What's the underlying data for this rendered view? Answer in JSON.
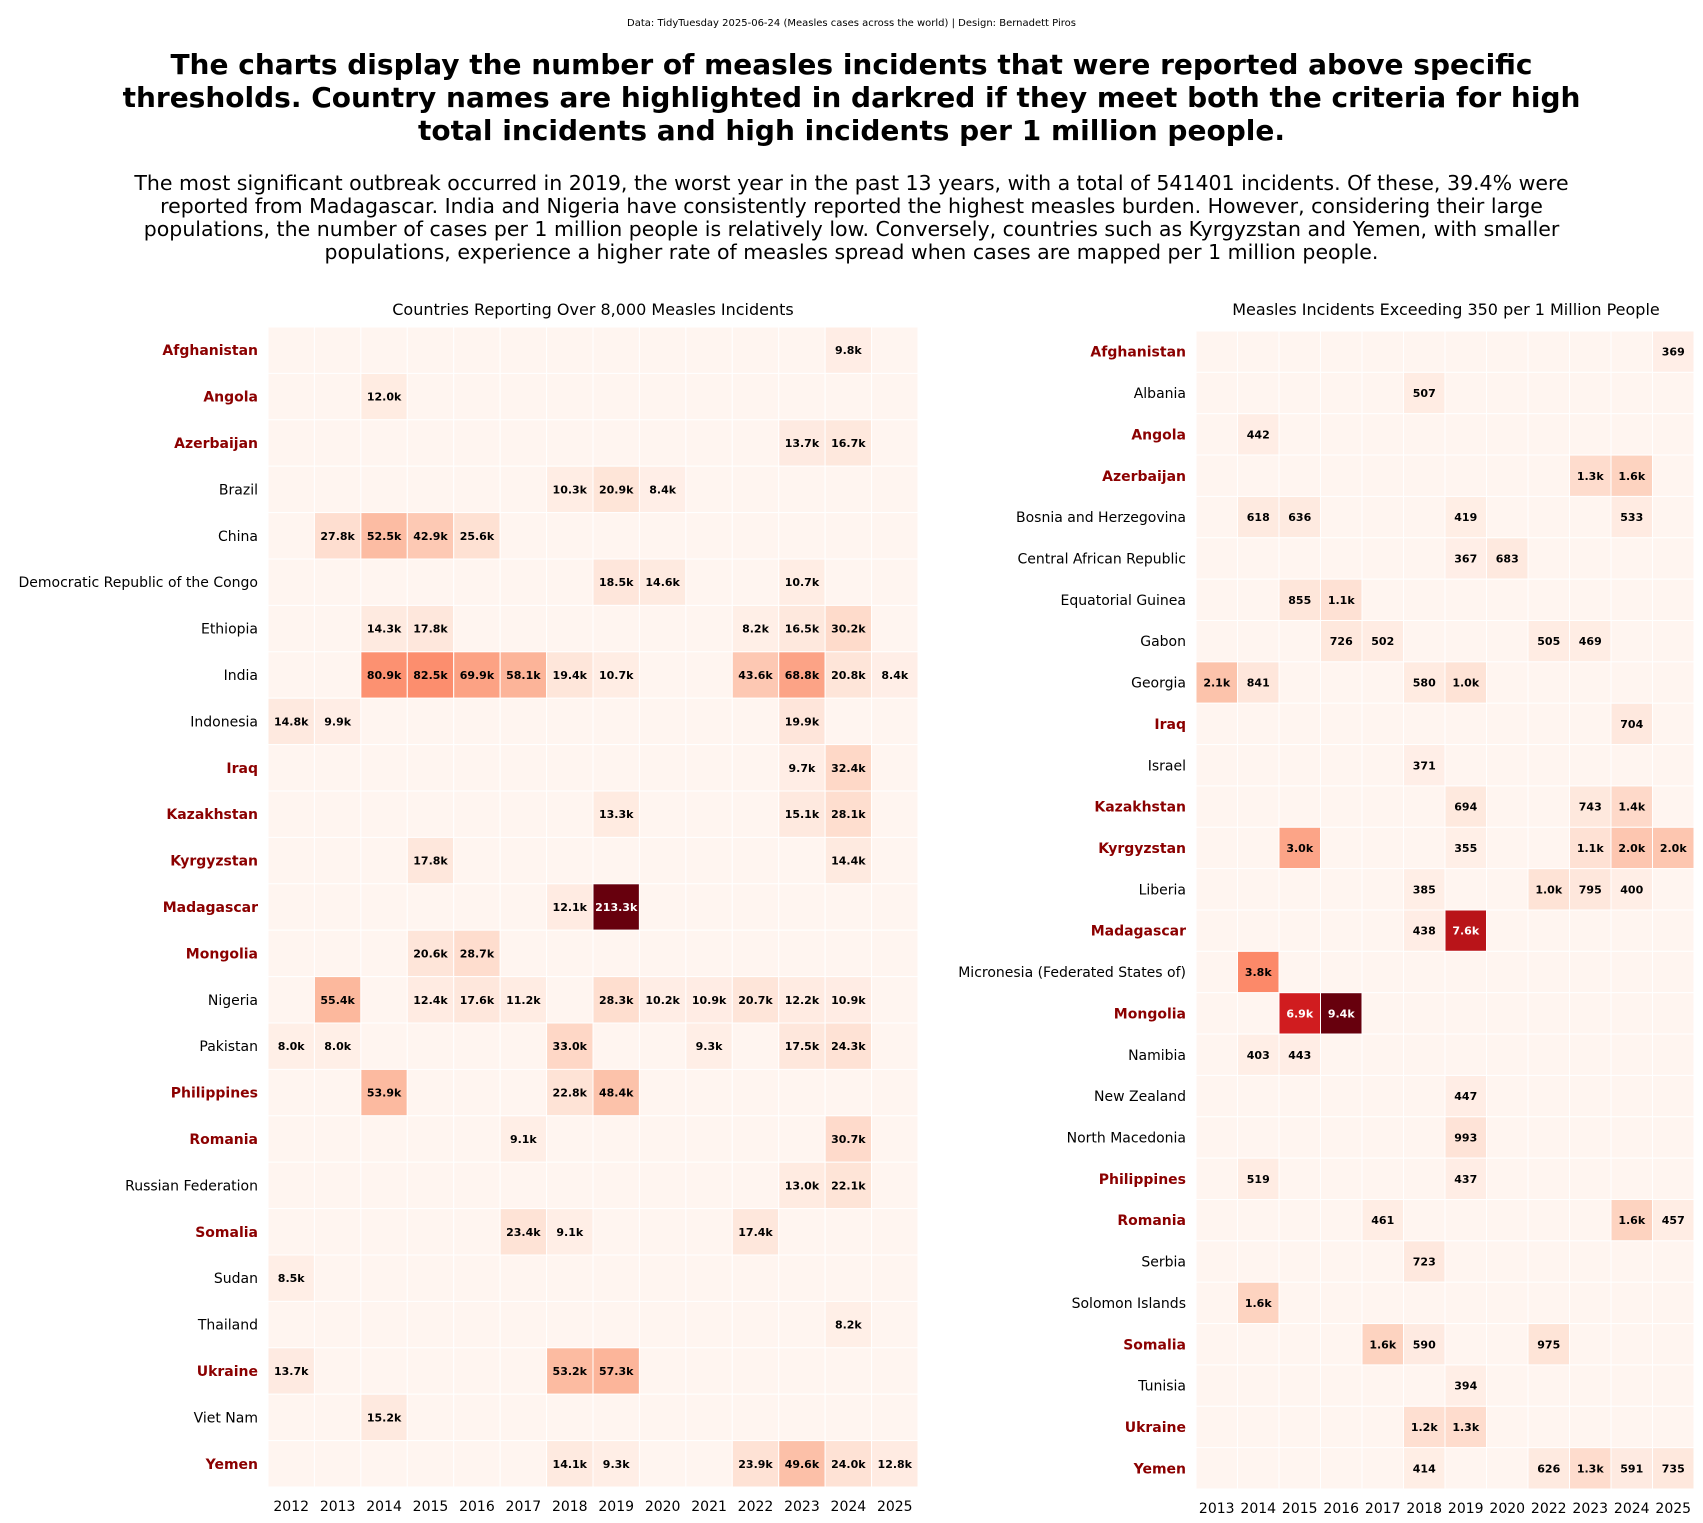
{
  "header": {
    "source": "Data: TidyTuesday 2025-06-24 (Measles cases across the world) | Design: Bernadett Piros",
    "title": "The charts display the number of measles incidents that were reported above specific thresholds. Country names are highlighted in darkred if they meet both the criteria for high total incidents and high incidents per 1 million people.",
    "subtitle": "The most significant outbreak occurred in 2019, the worst year in the past 13 years, with a total of 541401 incidents. Of these, 39.4% were reported from Madagascar. India and Nigeria have consistently reported the highest measles burden. However, considering their large populations, the number of cases per 1 million people is relatively low. Conversely, countries such as Kyrgyzstan and Yemen, with smaller populations, experience a higher rate of measles spread when cases are mapped per 1 million people."
  },
  "colors": {
    "highlight_label": "#8b0000",
    "normal_label": "#000000",
    "colormap": "Reds",
    "cell_background": "#fff5f0"
  },
  "chart_data": [
    {
      "type": "heatmap",
      "title": "Countries Reporting Over 8,000 Measles Incidents",
      "threshold": 8000,
      "columns": [
        "2012",
        "2013",
        "2014",
        "2015",
        "2016",
        "2017",
        "2018",
        "2019",
        "2020",
        "2021",
        "2022",
        "2023",
        "2024",
        "2025"
      ],
      "rows": [
        {
          "country": "Afghanistan",
          "highlight": true,
          "cells": {
            "2024": "9.8k"
          }
        },
        {
          "country": "Angola",
          "highlight": true,
          "cells": {
            "2014": "12.0k"
          }
        },
        {
          "country": "Azerbaijan",
          "highlight": true,
          "cells": {
            "2023": "13.7k",
            "2024": "16.7k"
          }
        },
        {
          "country": "Brazil",
          "highlight": false,
          "cells": {
            "2018": "10.3k",
            "2019": "20.9k",
            "2020": "8.4k"
          }
        },
        {
          "country": "China",
          "highlight": false,
          "cells": {
            "2013": "27.8k",
            "2014": "52.5k",
            "2015": "42.9k",
            "2016": "25.6k"
          }
        },
        {
          "country": "Democratic Republic of the Congo",
          "highlight": false,
          "cells": {
            "2019": "18.5k",
            "2020": "14.6k",
            "2023": "10.7k"
          }
        },
        {
          "country": "Ethiopia",
          "highlight": false,
          "cells": {
            "2014": "14.3k",
            "2015": "17.8k",
            "2022": "8.2k",
            "2023": "16.5k",
            "2024": "30.2k"
          }
        },
        {
          "country": "India",
          "highlight": false,
          "cells": {
            "2014": "80.9k",
            "2015": "82.5k",
            "2016": "69.9k",
            "2017": "58.1k",
            "2018": "19.4k",
            "2019": "10.7k",
            "2022": "43.6k",
            "2023": "68.8k",
            "2024": "20.8k",
            "2025": "8.4k"
          }
        },
        {
          "country": "Indonesia",
          "highlight": false,
          "cells": {
            "2012": "14.8k",
            "2013": "9.9k",
            "2023": "19.9k"
          }
        },
        {
          "country": "Iraq",
          "highlight": true,
          "cells": {
            "2023": "9.7k",
            "2024": "32.4k"
          }
        },
        {
          "country": "Kazakhstan",
          "highlight": true,
          "cells": {
            "2019": "13.3k",
            "2023": "15.1k",
            "2024": "28.1k"
          }
        },
        {
          "country": "Kyrgyzstan",
          "highlight": true,
          "cells": {
            "2015": "17.8k",
            "2024": "14.4k"
          }
        },
        {
          "country": "Madagascar",
          "highlight": true,
          "cells": {
            "2018": "12.1k",
            "2019": "213.3k"
          }
        },
        {
          "country": "Mongolia",
          "highlight": true,
          "cells": {
            "2015": "20.6k",
            "2016": "28.7k"
          }
        },
        {
          "country": "Nigeria",
          "highlight": false,
          "cells": {
            "2013": "55.4k",
            "2015": "12.4k",
            "2016": "17.6k",
            "2017": "11.2k",
            "2019": "28.3k",
            "2020": "10.2k",
            "2021": "10.9k",
            "2022": "20.7k",
            "2023": "12.2k",
            "2024": "10.9k"
          }
        },
        {
          "country": "Pakistan",
          "highlight": false,
          "cells": {
            "2012": "8.0k",
            "2013": "8.0k",
            "2018": "33.0k",
            "2021": "9.3k",
            "2023": "17.5k",
            "2024": "24.3k"
          }
        },
        {
          "country": "Philippines",
          "highlight": true,
          "cells": {
            "2014": "53.9k",
            "2018": "22.8k",
            "2019": "48.4k"
          }
        },
        {
          "country": "Romania",
          "highlight": true,
          "cells": {
            "2017": "9.1k",
            "2024": "30.7k"
          }
        },
        {
          "country": "Russian Federation",
          "highlight": false,
          "cells": {
            "2023": "13.0k",
            "2024": "22.1k"
          }
        },
        {
          "country": "Somalia",
          "highlight": true,
          "cells": {
            "2017": "23.4k",
            "2018": "9.1k",
            "2022": "17.4k"
          }
        },
        {
          "country": "Sudan",
          "highlight": false,
          "cells": {
            "2012": "8.5k"
          }
        },
        {
          "country": "Thailand",
          "highlight": false,
          "cells": {
            "2024": "8.2k"
          }
        },
        {
          "country": "Ukraine",
          "highlight": true,
          "cells": {
            "2012": "13.7k",
            "2018": "53.2k",
            "2019": "57.3k"
          }
        },
        {
          "country": "Viet Nam",
          "highlight": false,
          "cells": {
            "2014": "15.2k"
          }
        },
        {
          "country": "Yemen",
          "highlight": true,
          "cells": {
            "2018": "14.1k",
            "2019": "9.3k",
            "2022": "23.9k",
            "2023": "49.6k",
            "2024": "24.0k",
            "2025": "12.8k"
          }
        }
      ]
    },
    {
      "type": "heatmap",
      "title": "Measles Incidents Exceeding 350 per 1 Million People",
      "threshold": 350,
      "columns": [
        "2013",
        "2014",
        "2015",
        "2016",
        "2017",
        "2018",
        "2019",
        "2020",
        "2022",
        "2023",
        "2024",
        "2025"
      ],
      "rows": [
        {
          "country": "Afghanistan",
          "highlight": true,
          "cells": {
            "2025": "369"
          }
        },
        {
          "country": "Albania",
          "highlight": false,
          "cells": {
            "2018": "507"
          }
        },
        {
          "country": "Angola",
          "highlight": true,
          "cells": {
            "2014": "442"
          }
        },
        {
          "country": "Azerbaijan",
          "highlight": true,
          "cells": {
            "2023": "1.3k",
            "2024": "1.6k"
          }
        },
        {
          "country": "Bosnia and Herzegovina",
          "highlight": false,
          "cells": {
            "2014": "618",
            "2015": "636",
            "2019": "419",
            "2024": "533"
          }
        },
        {
          "country": "Central African Republic",
          "highlight": false,
          "cells": {
            "2019": "367",
            "2020": "683"
          }
        },
        {
          "country": "Equatorial Guinea",
          "highlight": false,
          "cells": {
            "2015": "855",
            "2016": "1.1k"
          }
        },
        {
          "country": "Gabon",
          "highlight": false,
          "cells": {
            "2016": "726",
            "2017": "502",
            "2022": "505",
            "2023": "469"
          }
        },
        {
          "country": "Georgia",
          "highlight": false,
          "cells": {
            "2013": "2.1k",
            "2014": "841",
            "2018": "580",
            "2019": "1.0k"
          }
        },
        {
          "country": "Iraq",
          "highlight": true,
          "cells": {
            "2024": "704"
          }
        },
        {
          "country": "Israel",
          "highlight": false,
          "cells": {
            "2018": "371"
          }
        },
        {
          "country": "Kazakhstan",
          "highlight": true,
          "cells": {
            "2019": "694",
            "2023": "743",
            "2024": "1.4k"
          }
        },
        {
          "country": "Kyrgyzstan",
          "highlight": true,
          "cells": {
            "2015": "3.0k",
            "2019": "355",
            "2023": "1.1k",
            "2024": "2.0k",
            "2025": "2.0k"
          }
        },
        {
          "country": "Liberia",
          "highlight": false,
          "cells": {
            "2018": "385",
            "2022": "1.0k",
            "2023": "795",
            "2024": "400"
          }
        },
        {
          "country": "Madagascar",
          "highlight": true,
          "cells": {
            "2018": "438",
            "2019": "7.6k"
          }
        },
        {
          "country": "Micronesia (Federated States of)",
          "highlight": false,
          "cells": {
            "2014": "3.8k"
          }
        },
        {
          "country": "Mongolia",
          "highlight": true,
          "cells": {
            "2015": "6.9k",
            "2016": "9.4k"
          }
        },
        {
          "country": "Namibia",
          "highlight": false,
          "cells": {
            "2014": "403",
            "2015": "443"
          }
        },
        {
          "country": "New Zealand",
          "highlight": false,
          "cells": {
            "2019": "447"
          }
        },
        {
          "country": "North Macedonia",
          "highlight": false,
          "cells": {
            "2019": "993"
          }
        },
        {
          "country": "Philippines",
          "highlight": true,
          "cells": {
            "2014": "519",
            "2019": "437"
          }
        },
        {
          "country": "Romania",
          "highlight": true,
          "cells": {
            "2017": "461",
            "2024": "1.6k",
            "2025": "457"
          }
        },
        {
          "country": "Serbia",
          "highlight": false,
          "cells": {
            "2018": "723"
          }
        },
        {
          "country": "Solomon Islands",
          "highlight": false,
          "cells": {
            "2014": "1.6k"
          }
        },
        {
          "country": "Somalia",
          "highlight": true,
          "cells": {
            "2017": "1.6k",
            "2018": "590",
            "2022": "975"
          }
        },
        {
          "country": "Tunisia",
          "highlight": false,
          "cells": {
            "2019": "394"
          }
        },
        {
          "country": "Ukraine",
          "highlight": true,
          "cells": {
            "2018": "1.2k",
            "2019": "1.3k"
          }
        },
        {
          "country": "Yemen",
          "highlight": true,
          "cells": {
            "2018": "414",
            "2022": "626",
            "2023": "1.3k",
            "2024": "591",
            "2025": "735"
          }
        }
      ]
    }
  ]
}
